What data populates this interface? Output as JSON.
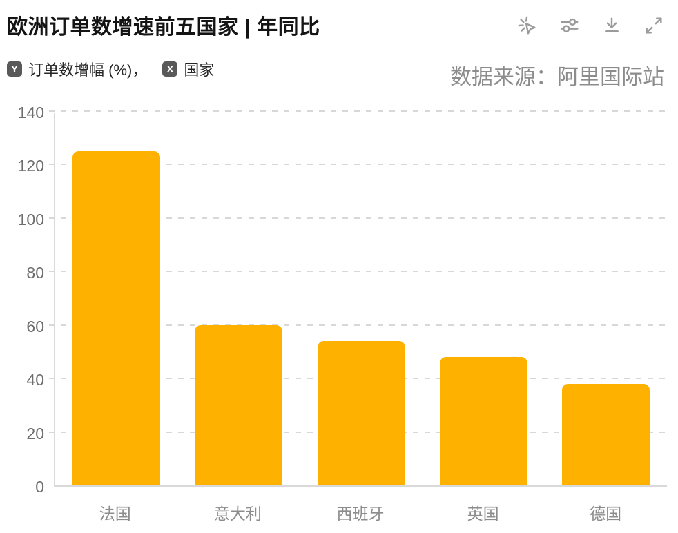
{
  "header": {
    "title": "欧洲订单数增速前五国家 | 年同比"
  },
  "toolbar": {
    "icons": [
      {
        "name": "cursor-sparkle-icon"
      },
      {
        "name": "sliders-icon"
      },
      {
        "name": "download-icon"
      },
      {
        "name": "expand-icon"
      }
    ],
    "icon_color": "#9b9b9b"
  },
  "legend": {
    "y_badge": "Y",
    "y_label": "订单数增幅 (%)",
    "separator": "，",
    "x_badge": "X",
    "x_label": "国家"
  },
  "source": "数据来源：阿里国际站",
  "chart_data": {
    "type": "bar",
    "title": "欧洲订单数增速前五国家 | 年同比",
    "categories": [
      "法国",
      "意大利",
      "西班牙",
      "英国",
      "德国"
    ],
    "values": [
      125,
      60,
      54,
      48,
      38
    ],
    "xlabel": "国家",
    "ylabel": "订单数增幅 (%)",
    "ylim": [
      0,
      140
    ],
    "yticks": [
      0,
      20,
      40,
      60,
      80,
      100,
      120,
      140
    ],
    "grid": "dashed-horizontal",
    "legend_position": "none",
    "bar_color": "#FFB100"
  },
  "colors": {
    "bar": "#FFB100",
    "title_text": "#141414",
    "axis_label": "#6e6e6e",
    "category_label": "#8c8c8c",
    "source_text": "#8c8c8c",
    "badge_bg": "#595959",
    "gridline": "#d8d8d8",
    "axis_line": "#d9d9d9"
  }
}
